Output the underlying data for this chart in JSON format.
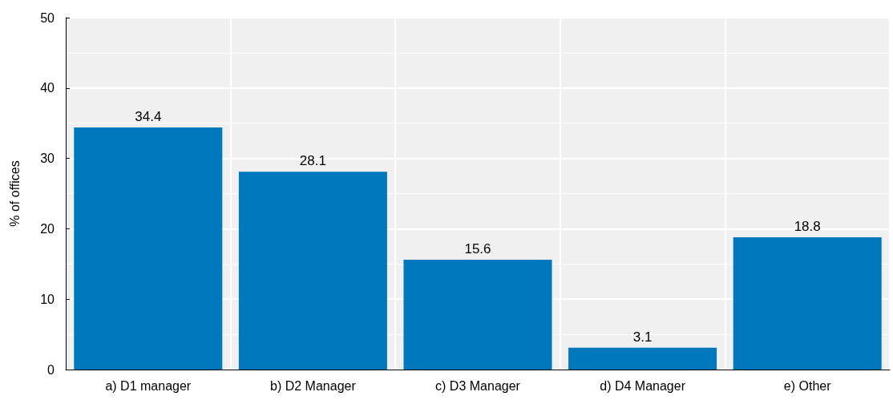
{
  "chart_data": {
    "type": "bar",
    "ylabel": "% of offices",
    "categories": [
      "a) D1 manager",
      "b) D2 Manager",
      "c) D3 Manager",
      "d) D4 Manager",
      "e) Other"
    ],
    "values": [
      34.4,
      28.1,
      15.6,
      3.1,
      18.8
    ],
    "color": "#0078be",
    "ylim": [
      0,
      50
    ],
    "yticks": [
      0,
      10,
      20,
      30,
      40,
      50
    ],
    "grid": true,
    "data_labels": true
  }
}
